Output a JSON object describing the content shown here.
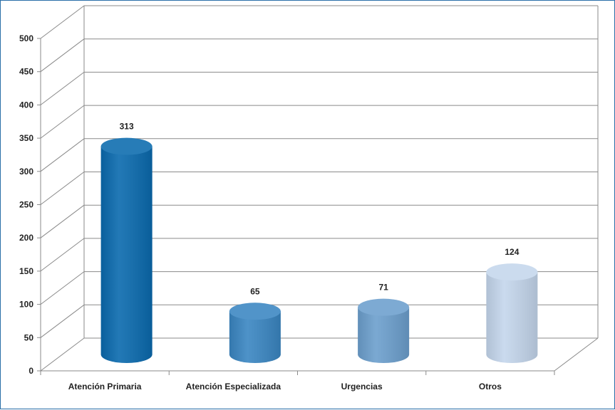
{
  "chart_data": {
    "type": "bar",
    "style": "3d-cylinder",
    "categories": [
      "Atención Primaria",
      "Atención Especializada",
      "Urgencias",
      "Otros"
    ],
    "values": [
      313,
      65,
      71,
      124
    ],
    "data_labels": [
      "313",
      "65",
      "71",
      "124"
    ],
    "colors": [
      "#0a6aae",
      "#3a86c2",
      "#6c9fcd",
      "#c4d6ec"
    ],
    "title": "",
    "xlabel": "",
    "ylabel": "",
    "ylim": [
      0,
      500
    ],
    "yticks": [
      0,
      50,
      100,
      150,
      200,
      250,
      300,
      350,
      400,
      450,
      500
    ],
    "ytick_labels": [
      "0",
      "50",
      "100",
      "150",
      "200",
      "250",
      "300",
      "350",
      "400",
      "450",
      "500"
    ],
    "grid": true,
    "legend": "none"
  }
}
